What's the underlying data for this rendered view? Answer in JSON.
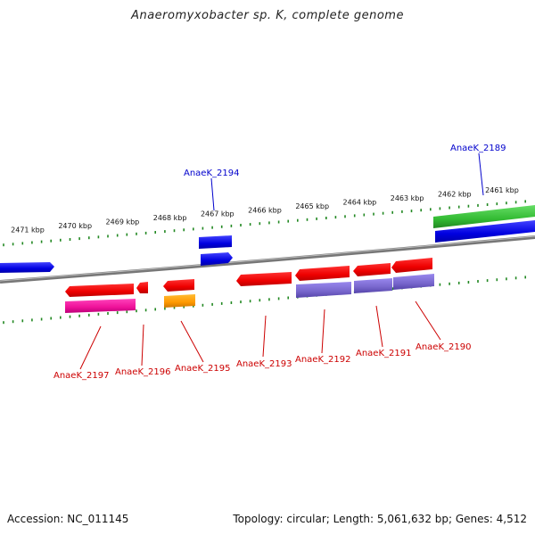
{
  "title": "Anaeromyxobacter sp. K, complete genome",
  "footer": {
    "accession_label": "Accession: NC_011145",
    "summary": "Topology: circular; Length: 5,061,632 bp; Genes: 4,512"
  },
  "colors": {
    "forward_gene": "#0000ee",
    "reverse_gene": "#ee0000",
    "pink_gene": "#ee1199",
    "orange_gene": "#ff9900",
    "purple_gene": "#7766cc",
    "green_gene": "#33bb33",
    "backbone": "#888888",
    "tick": "#228822"
  },
  "scale_ticks": [
    "2471 kbp",
    "2470 kbp",
    "2469 kbp",
    "2468 kbp",
    "2467 kbp",
    "2466 kbp",
    "2465 kbp",
    "2464 kbp",
    "2463 kbp",
    "2462 kbp",
    "2461 kbp"
  ],
  "gene_labels": {
    "AnaeK_2189": "AnaeK_2189",
    "AnaeK_2194": "AnaeK_2194",
    "AnaeK_2197": "AnaeK_2197",
    "AnaeK_2196": "AnaeK_2196",
    "AnaeK_2195": "AnaeK_2195",
    "AnaeK_2193": "AnaeK_2193",
    "AnaeK_2192": "AnaeK_2192",
    "AnaeK_2191": "AnaeK_2191",
    "AnaeK_2190": "AnaeK_2190"
  }
}
